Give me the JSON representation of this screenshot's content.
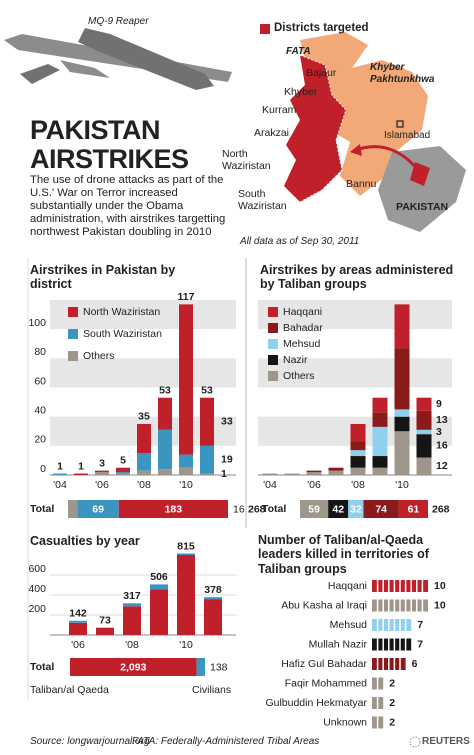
{
  "header": {
    "title": "PAKISTAN AIRSTRIKES",
    "description": "The use of drone attacks as part of the U.S.' War on Terror increased substantially under the Obama administration, with airstrikes targetting northwest Pakistan doubling in 2010",
    "drone_caption": "MQ-9 Reaper"
  },
  "map": {
    "legend": "Districts targeted",
    "legend_color": "#c0202a",
    "region_labels": [
      "FATA",
      "Khyber Pakhtunkhwa",
      "Islamabad",
      "PAKISTAN"
    ],
    "district_labels": [
      "Bajaur",
      "Khyber",
      "Kurram",
      "Arakzai",
      "North Waziristan",
      "Bannu",
      "South Waziristan"
    ],
    "note": "All data as of Sep 30, 2011"
  },
  "chart_data": [
    {
      "type": "stacked-bar",
      "title": "Airstrikes in Pakistan by district",
      "categories": [
        "'04",
        null,
        "'06",
        null,
        "'08",
        null,
        "'10",
        null
      ],
      "series": [
        {
          "name": "Others",
          "color": "#9e968a",
          "values": [
            0,
            0,
            2,
            1,
            3,
            4,
            5,
            1
          ],
          "total": 16
        },
        {
          "name": "South Waziristan",
          "color": "#3a95c0",
          "values": [
            1,
            0,
            0,
            1,
            12,
            27,
            9,
            19
          ],
          "total": 69
        },
        {
          "name": "North Waziristan",
          "color": "#c0202a",
          "values": [
            0,
            1,
            1,
            3,
            20,
            22,
            103,
            33
          ],
          "total": 183
        }
      ],
      "bar_totals": [
        1,
        1,
        3,
        5,
        35,
        53,
        117,
        53
      ],
      "ylim": [
        0,
        120
      ],
      "yticks": [
        0,
        20,
        40,
        60,
        80,
        100
      ],
      "total_text": "Total",
      "grand_total": 268
    },
    {
      "type": "stacked-bar",
      "title": "Airstrikes by areas administered by Taliban groups",
      "categories": [
        "'04",
        null,
        "'06",
        null,
        "'08",
        null,
        "'10",
        null
      ],
      "series": [
        {
          "name": "Others",
          "color": "#9e968a",
          "values": [
            1,
            1,
            2,
            3,
            5,
            5,
            30,
            12
          ],
          "total": 59
        },
        {
          "name": "Nazir",
          "color": "#151515",
          "values": [
            0,
            0,
            0,
            0,
            8,
            8,
            10,
            16
          ],
          "total": 42
        },
        {
          "name": "Mehsud",
          "color": "#8fd0ee",
          "values": [
            0,
            0,
            0,
            0,
            4,
            20,
            5,
            3
          ],
          "total": 32
        },
        {
          "name": "Bahadar",
          "color": "#8b1a1a",
          "values": [
            0,
            0,
            1,
            2,
            6,
            10,
            42,
            13
          ],
          "total": 74
        },
        {
          "name": "Haqqani",
          "color": "#c0202a",
          "values": [
            0,
            0,
            0,
            0,
            12,
            10,
            30,
            9
          ],
          "total": 61
        }
      ],
      "ylim": [
        0,
        120
      ],
      "yticks": [
        0,
        20,
        40,
        60,
        80,
        100
      ],
      "total_text": "Total",
      "grand_total": 268
    },
    {
      "type": "stacked-bar",
      "title": "Casualties by year",
      "categories": [
        "'06",
        null,
        "'08",
        null,
        "'10",
        null
      ],
      "series": [
        {
          "name": "Taliban/al Qaeda",
          "color": "#c0202a",
          "values": [
            122,
            73,
            287,
            456,
            800,
            355
          ],
          "total": 2093,
          "total_label": "2,093"
        },
        {
          "name": "Civilians",
          "color": "#3a95c0",
          "values": [
            20,
            0,
            30,
            50,
            15,
            23
          ],
          "total": 138
        }
      ],
      "bar_totals": [
        142,
        73,
        317,
        506,
        815,
        378
      ],
      "ylim": [
        0,
        900
      ],
      "yticks": [
        200,
        400,
        600
      ],
      "total_text": "Total"
    },
    {
      "type": "hbar",
      "title": "Number of Taliban/al-Qaeda leaders killed in territories of Taliban groups",
      "categories": [
        "Haqqani",
        "Abu Kasha al Iraqi",
        "Mehsud",
        "Mullah Nazir",
        "Hafiz Gul Bahadar",
        "Faqir Mohammed",
        "Gulbuddin Hekmatyar",
        "Unknown"
      ],
      "values": [
        10,
        10,
        7,
        7,
        6,
        2,
        2,
        2
      ],
      "colors": [
        "#c0202a",
        "#9e968a",
        "#8fd0ee",
        "#151515",
        "#8b1a1a",
        "#9e968a",
        "#9e968a",
        "#9e968a"
      ],
      "xlim": [
        0,
        10
      ]
    }
  ],
  "footer": {
    "source": "Source: longwarjournal.org",
    "note": "FATA: Federally-Administered Tribal Areas",
    "credit": "REUTERS"
  }
}
